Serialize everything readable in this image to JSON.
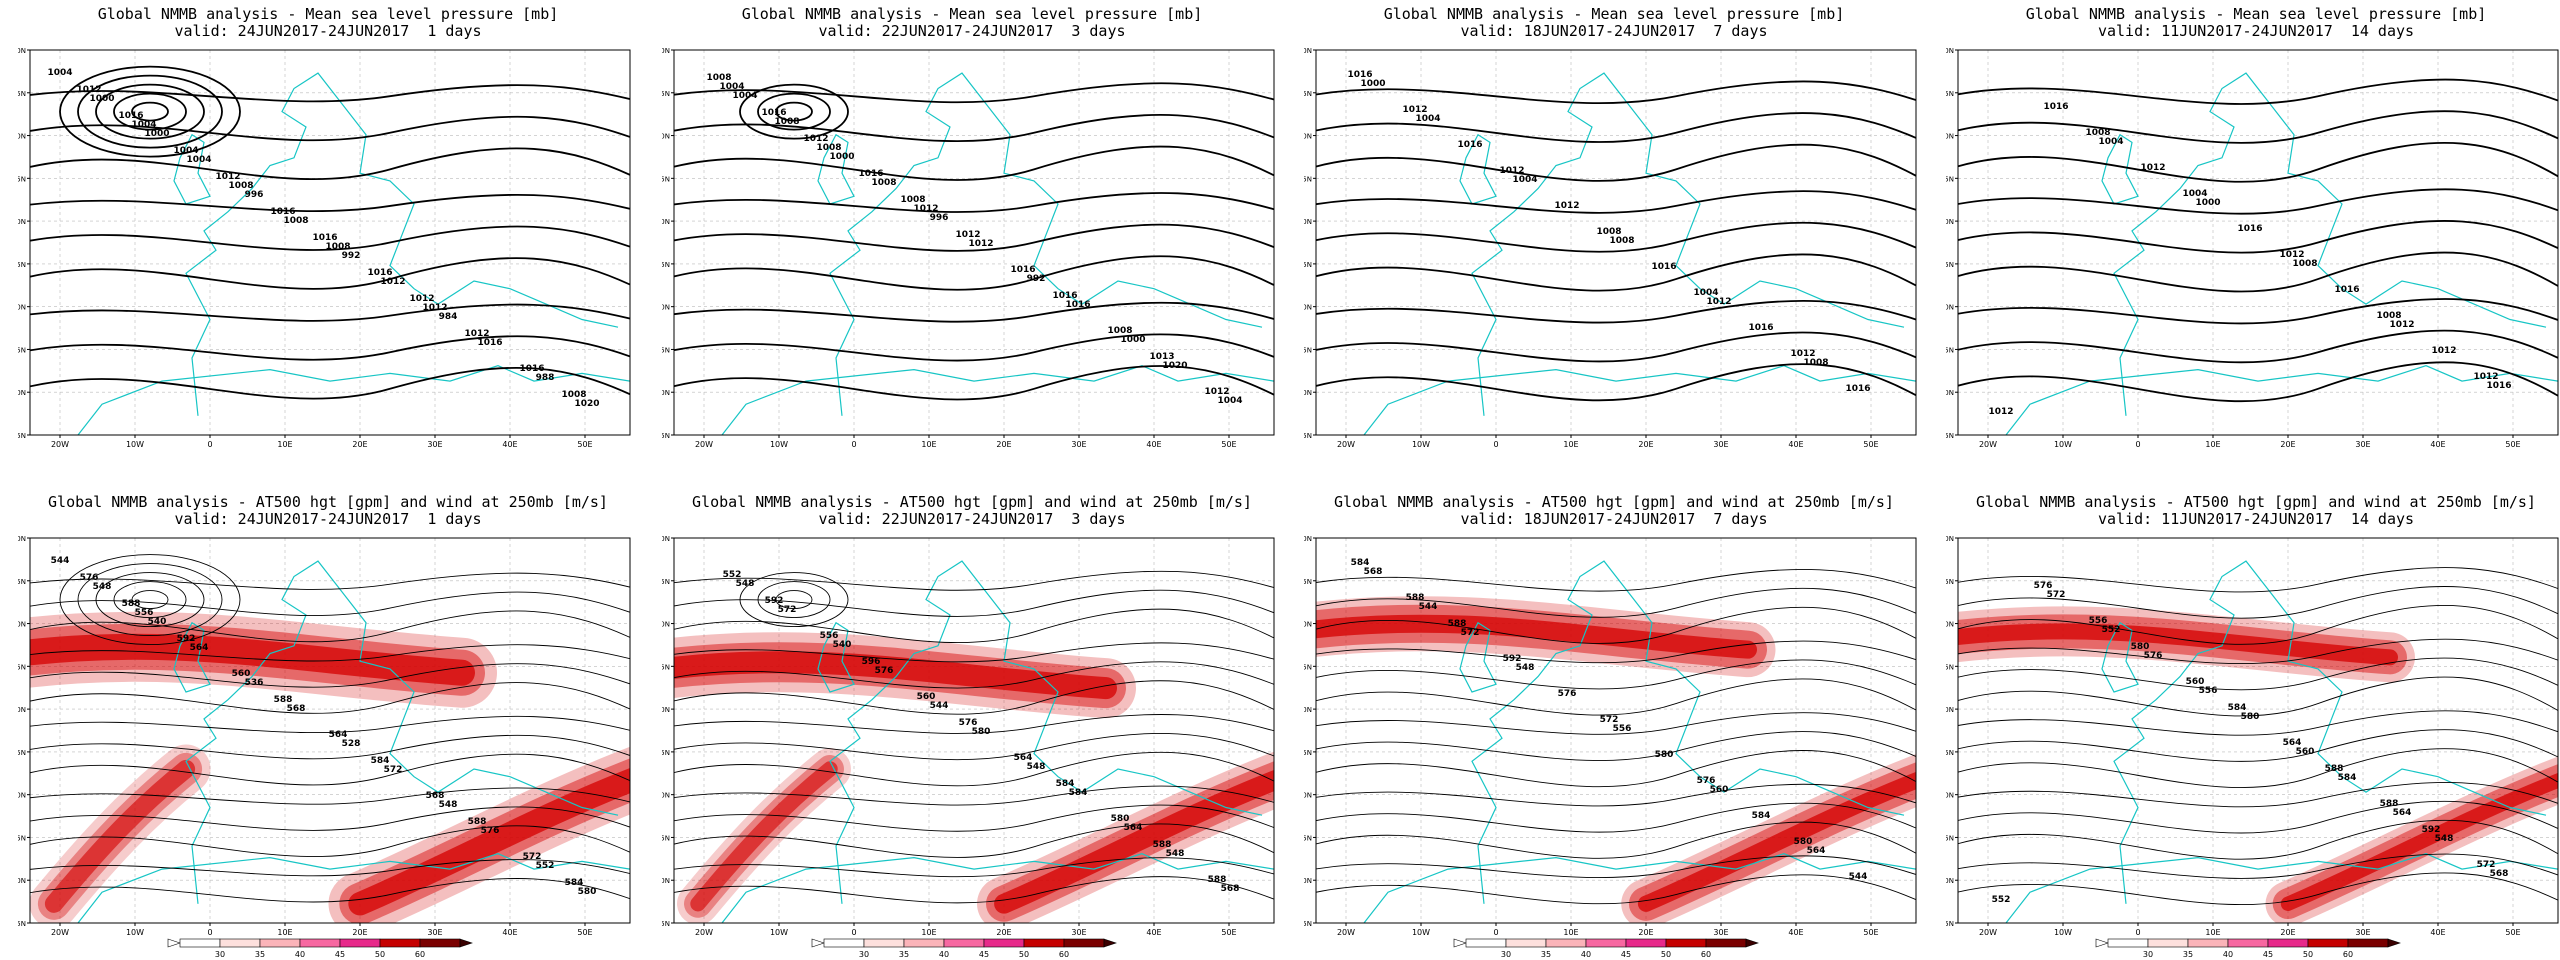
{
  "top_row": {
    "title": "Global NMMB analysis - Mean sea level pressure [mb]",
    "panels": [
      {
        "valid": "valid: 24JUN2017-24JUN2017  1 days",
        "labels": [
          "1004",
          "1000",
          "996",
          "992",
          "984",
          "988",
          "1000",
          "1004",
          "1008",
          "1012",
          "1016",
          "1020",
          "1004",
          "1008",
          "1008",
          "1012",
          "1016",
          "1012",
          "1004",
          "1016",
          "1016",
          "1012",
          "1008",
          "1016",
          "1012",
          "1016",
          "1012"
        ]
      },
      {
        "valid": "valid: 22JUN2017-24JUN2017  3 days",
        "labels": [
          "1004",
          "1000",
          "996",
          "992",
          "1000",
          "1004",
          "1008",
          "1008",
          "1012",
          "1016",
          "1020",
          "1004",
          "1008",
          "1012",
          "1016",
          "1008",
          "1012",
          "1016",
          "1016",
          "1012",
          "1016",
          "1013",
          "1008",
          "1012",
          "1008"
        ]
      },
      {
        "valid": "valid: 18JUN2017-24JUN2017  7 days",
        "labels": [
          "1004",
          "1004",
          "1008",
          "1012",
          "1008",
          "1000",
          "1016",
          "1012",
          "1016",
          "1016",
          "1016",
          "1012",
          "1012",
          "1008",
          "1004",
          "1012",
          "1016"
        ]
      },
      {
        "valid": "valid: 11JUN2017-24JUN2017  14 days",
        "labels": [
          "1004",
          "1000",
          "1008",
          "1012",
          "1016",
          "1016",
          "1012",
          "1016",
          "1016",
          "1012",
          "1012",
          "1008",
          "1004",
          "1012",
          "1008",
          "1012"
        ]
      }
    ]
  },
  "bottom_row": {
    "title": "Global NMMB analysis - AT500 hgt [gpm] and wind at 250mb [m/s]",
    "panels": [
      {
        "valid": "valid: 24JUN2017-24JUN2017  1 days",
        "labels": [
          "544",
          "540",
          "536",
          "528",
          "548",
          "552",
          "548",
          "564",
          "568",
          "572",
          "576",
          "580",
          "556",
          "560",
          "564",
          "568",
          "572",
          "576",
          "592",
          "588",
          "584",
          "588",
          "584",
          "588"
        ]
      },
      {
        "valid": "valid: 22JUN2017-24JUN2017  3 days",
        "labels": [
          "548",
          "540",
          "544",
          "548",
          "564",
          "568",
          "572",
          "576",
          "580",
          "584",
          "548",
          "552",
          "556",
          "560",
          "564",
          "580",
          "588",
          "592",
          "596",
          "576",
          "584",
          "588"
        ]
      },
      {
        "valid": "valid: 18JUN2017-24JUN2017  7 days",
        "labels": [
          "544",
          "548",
          "556",
          "560",
          "564",
          "568",
          "572",
          "576",
          "580",
          "584",
          "544",
          "588",
          "592",
          "572",
          "576",
          "580",
          "584",
          "588"
        ]
      },
      {
        "valid": "valid: 11JUN2017-24JUN2017  14 days",
        "labels": [
          "552",
          "556",
          "560",
          "564",
          "568",
          "572",
          "576",
          "580",
          "584",
          "548",
          "552",
          "556",
          "560",
          "564",
          "588",
          "572",
          "576",
          "580",
          "584",
          "588",
          "592"
        ]
      }
    ]
  },
  "axes": {
    "lat_ticks": [
      "70N",
      "65N",
      "60N",
      "55N",
      "50N",
      "45N",
      "40N",
      "35N",
      "30N",
      "25N"
    ],
    "lon_ticks": [
      "20W",
      "10W",
      "0",
      "10E",
      "20E",
      "30E",
      "40E",
      "50E"
    ]
  },
  "colorbar": {
    "ticks": [
      "30",
      "35",
      "40",
      "45",
      "50",
      "60"
    ],
    "colors": [
      "#fde0dd",
      "#fbb4b9",
      "#f768a1",
      "#e7298a",
      "#c50000",
      "#7a0000"
    ]
  }
}
